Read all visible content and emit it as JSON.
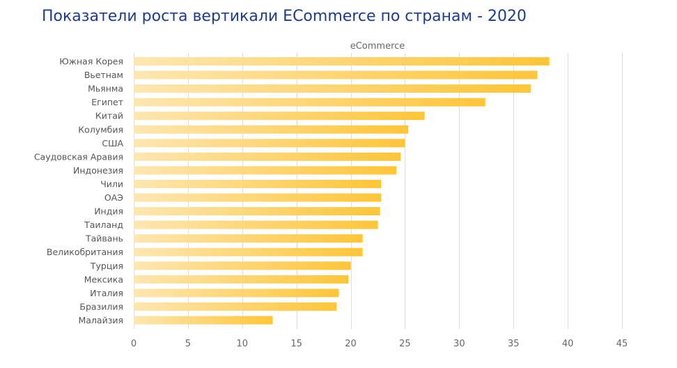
{
  "chart_data": {
    "type": "bar",
    "orientation": "horizontal",
    "title": "Показатели роста вертикали ECommerce по странам - 2020",
    "series_name": "eCommerce",
    "categories": [
      "Южная Корея",
      "Вьетнам",
      "Мьянма",
      "Египет",
      "Китай",
      "Колумбия",
      "США",
      "Саудовская Аравия",
      "Индонезия",
      "Чили",
      "ОАЭ",
      "Индия",
      "Таиланд",
      "Тайвань",
      "Великобритания",
      "Турция",
      "Мексика",
      "Италия",
      "Бразилия",
      "Малайзия"
    ],
    "values": [
      38.3,
      37.2,
      36.6,
      32.4,
      26.8,
      25.3,
      25.0,
      24.6,
      24.2,
      22.8,
      22.8,
      22.7,
      22.5,
      21.1,
      21.1,
      20.0,
      19.8,
      18.9,
      18.7,
      12.8
    ],
    "xlim": [
      0,
      45
    ],
    "xticks": [
      0,
      5,
      10,
      15,
      20,
      25,
      30,
      35,
      40,
      45
    ],
    "grid": true,
    "colors": {
      "bar_start": "#fde6b2",
      "bar_end": "#fdc53a",
      "grid": "#dddddd",
      "title": "#1f3c88"
    }
  }
}
